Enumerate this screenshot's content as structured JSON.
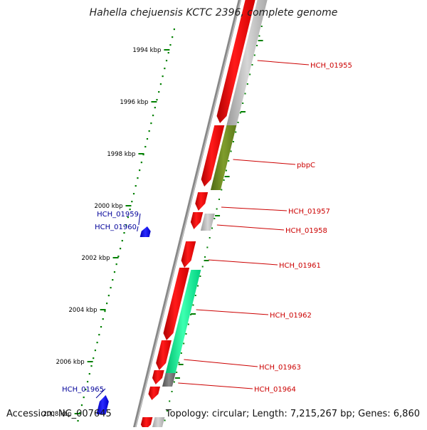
{
  "title": "Hahella chejuensis KCTC 2396, complete genome",
  "footer": {
    "accession": "Accession: NC_007645",
    "summary": "Topology: circular; Length: 7,215,267 bp; Genes: 6,860"
  },
  "ticks": [
    {
      "label": "1994 kbp",
      "kbp": 1994
    },
    {
      "label": "1996 kbp",
      "kbp": 1996
    },
    {
      "label": "1998 kbp",
      "kbp": 1998
    },
    {
      "label": "2000 kbp",
      "kbp": 2000
    },
    {
      "label": "2002 kbp",
      "kbp": 2002
    },
    {
      "label": "2004 kbp",
      "kbp": 2004
    },
    {
      "label": "2006 kbp",
      "kbp": 2006
    },
    {
      "label": "2008 kbp",
      "kbp": 2008
    }
  ],
  "genes": [
    {
      "name": "HCH_01955",
      "strand": "forward",
      "color": "#ff0000",
      "label_color": "#cc0000"
    },
    {
      "name": "pbpC",
      "strand": "forward",
      "color": "#ff0000",
      "label_color": "#cc0000"
    },
    {
      "name": "HCH_01957",
      "strand": "forward",
      "color": "#ff0000",
      "label_color": "#cc0000"
    },
    {
      "name": "HCH_01958",
      "strand": "forward",
      "color": "#ff0000",
      "label_color": "#cc0000"
    },
    {
      "name": "HCH_01959",
      "strand": "reverse",
      "color": "#0000ff",
      "label_color": "#000099"
    },
    {
      "name": "HCH_01960",
      "strand": "reverse",
      "color": "#0000ff",
      "label_color": "#000099"
    },
    {
      "name": "HCH_01961",
      "strand": "forward",
      "color": "#ff0000",
      "label_color": "#cc0000"
    },
    {
      "name": "HCH_01962",
      "strand": "forward",
      "color": "#ff0000",
      "label_color": "#cc0000"
    },
    {
      "name": "HCH_01963",
      "strand": "forward",
      "color": "#ff0000",
      "label_color": "#cc0000"
    },
    {
      "name": "HCH_01964",
      "strand": "forward",
      "color": "#ff0000",
      "label_color": "#cc0000"
    },
    {
      "name": "HCH_01965",
      "strand": "reverse",
      "color": "#0000ff",
      "label_color": "#000099"
    }
  ],
  "colors": {
    "backbone": "#888888",
    "tick": "#008000",
    "cog_grey": "#bbbbbb",
    "cog_olive": "#6b8e23",
    "cog_green": "#00ee88"
  }
}
